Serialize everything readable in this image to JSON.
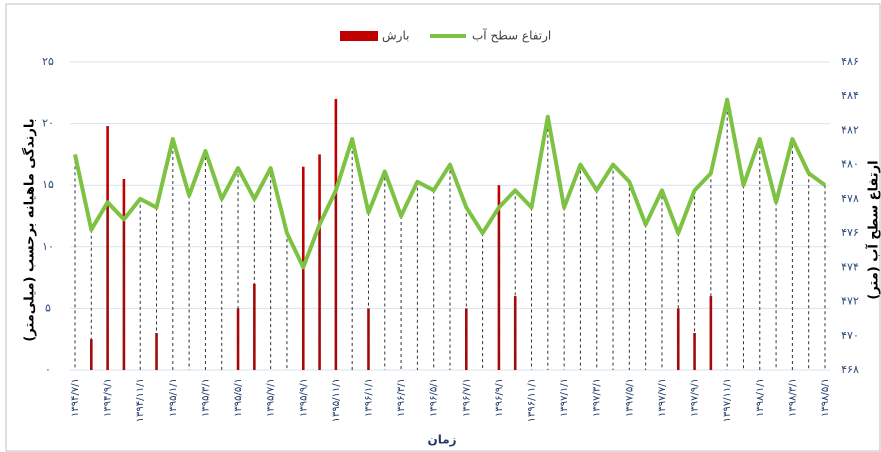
{
  "chart_data": {
    "type": "combo",
    "xlabel": "زمان",
    "ylabel": "بارندگی ماهیانه برحسب (میلی‌متر)",
    "y2label": "ارتفاع سطح آب (متر)",
    "categories": [
      "۱۳۹۴/۷/۱",
      null,
      "۱۳۹۴/۹/۱",
      null,
      "۱۳۹۴/۱۱/۱",
      null,
      "۱۳۹۵/۱/۱",
      null,
      "۱۳۹۵/۳/۱",
      null,
      "۱۳۹۵/۵/۱",
      null,
      "۱۳۹۵/۷/۱",
      null,
      "۱۳۹۵/۹/۱",
      null,
      "۱۳۹۵/۱۱/۱",
      null,
      "۱۳۹۶/۱/۱",
      null,
      "۱۳۹۶/۳/۱",
      null,
      "۱۳۹۶/۵/۱",
      null,
      "۱۳۹۶/۷/۱",
      null,
      "۱۳۹۶/۹/۱",
      null,
      "۱۳۹۶/۱۱/۱",
      null,
      "۱۳۹۷/۱/۱",
      null,
      "۱۳۹۷/۳/۱",
      null,
      "۱۳۹۷/۵/۱",
      null,
      "۱۳۹۷/۷/۱",
      null,
      "۱۳۹۷/۹/۱",
      null,
      "۱۳۹۷/۱۱/۱",
      null,
      "۱۳۹۸/۱/۱",
      null,
      "۱۳۹۸/۳/۱",
      null,
      "۱۳۹۸/۵/۱"
    ],
    "series": [
      {
        "name": "بارش",
        "type": "bar",
        "color": "#c00000",
        "values": [
          0,
          2.5,
          19.8,
          15.5,
          0,
          3,
          0,
          0,
          0,
          0,
          5,
          7,
          0,
          0,
          16.5,
          17.5,
          22,
          0,
          5,
          0,
          0,
          0,
          0,
          0,
          5,
          0,
          15,
          6,
          0,
          0,
          0,
          0,
          0,
          0,
          0,
          0,
          0,
          5,
          3,
          6,
          0,
          0,
          0,
          0,
          0,
          0,
          0
        ]
      },
      {
        "name": "ارتفاع سطح آب",
        "type": "line",
        "axis": "y2",
        "color": "#7dc242",
        "values": [
          480.6,
          476.2,
          477.8,
          476.8,
          478,
          477.5,
          481.5,
          478.2,
          480.8,
          478,
          479.8,
          478,
          479.8,
          476,
          474,
          476.5,
          478.5,
          481.5,
          477.2,
          479.6,
          477,
          479,
          478.5,
          480,
          477.5,
          476,
          477.5,
          478.5,
          477.5,
          482.8,
          477.5,
          480,
          478.5,
          480,
          479,
          476.5,
          478.5,
          476,
          478.5,
          479.5,
          483.8,
          478.8,
          481.5,
          477.8,
          481.5,
          479.5,
          478.8
        ]
      }
    ],
    "ylim": [
      0,
      25
    ],
    "yticks": [
      {
        "value": 0,
        "label": "۰"
      },
      {
        "value": 5,
        "label": "۵"
      },
      {
        "value": 10,
        "label": "۱۰"
      },
      {
        "value": 15,
        "label": "۱۵"
      },
      {
        "value": 20,
        "label": "۲۰"
      },
      {
        "value": 25,
        "label": "۲۵"
      }
    ],
    "y2lim": [
      468,
      486
    ],
    "y2ticks": [
      {
        "value": 468,
        "label": "۴۶۸"
      },
      {
        "value": 470,
        "label": "۴۷۰"
      },
      {
        "value": 472,
        "label": "۴۷۲"
      },
      {
        "value": 474,
        "label": "۴۷۴"
      },
      {
        "value": 476,
        "label": "۴۷۶"
      },
      {
        "value": 478,
        "label": "۴۷۸"
      },
      {
        "value": 480,
        "label": "۴۸۰"
      },
      {
        "value": 482,
        "label": "۴۸۲"
      },
      {
        "value": 484,
        "label": "۴۸۴"
      },
      {
        "value": 486,
        "label": "۴۸۶"
      }
    ],
    "grid": true,
    "legend": "top",
    "drop_lines": true
  }
}
